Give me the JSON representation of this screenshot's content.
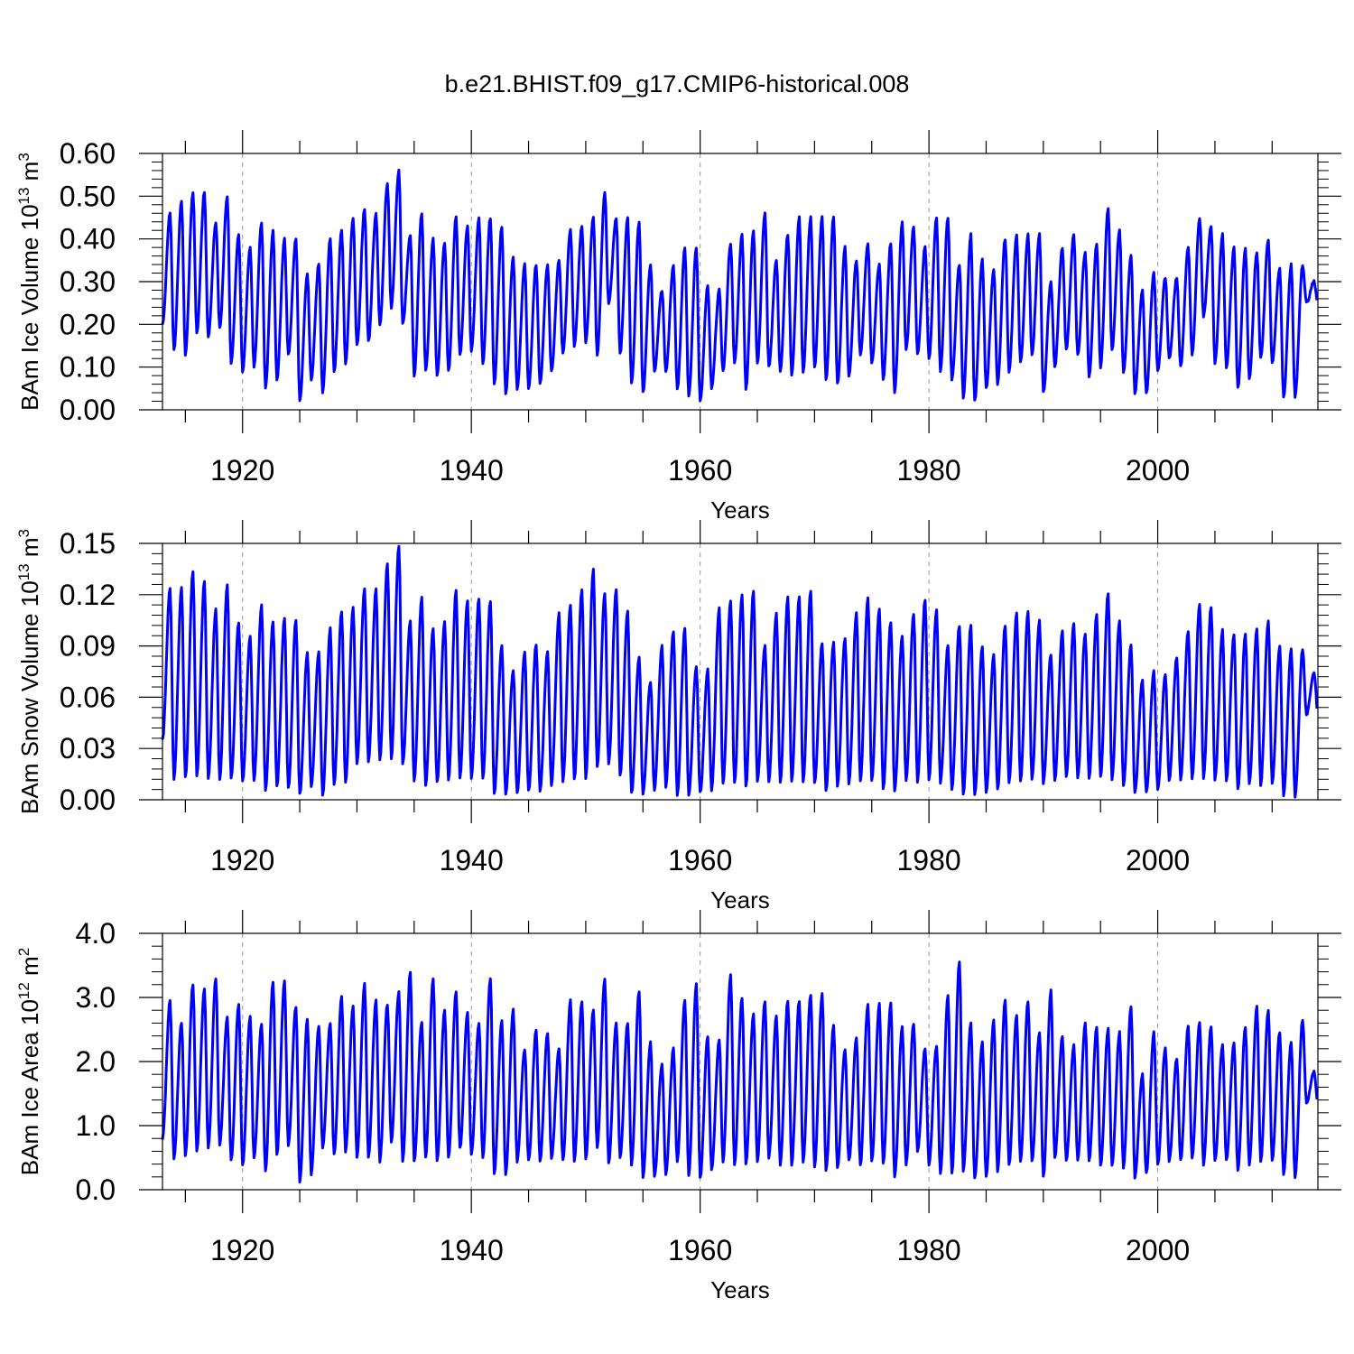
{
  "figure": {
    "title": "b.e21.BHIST.f09_g17.CMIP6-historical.008"
  },
  "chart_data": [
    {
      "type": "line",
      "ylabel": "BAm Ice Volume",
      "ylabel_power": "10",
      "ylabel_exp": "13",
      "ylabel_unit": "m",
      "ylabel_unit_exp": "3",
      "xlabel": "Years",
      "xlim": [
        1913,
        2014
      ],
      "ylim": [
        0.0,
        0.6
      ],
      "yticks": [
        "0.00",
        "0.10",
        "0.20",
        "0.30",
        "0.40",
        "0.50",
        "0.60"
      ],
      "ytick_values": [
        0.0,
        0.1,
        0.2,
        0.3,
        0.4,
        0.5,
        0.6
      ],
      "xticks": [
        "1920",
        "1940",
        "1960",
        "1980",
        "2000"
      ],
      "xtick_values": [
        1920,
        1940,
        1960,
        1980,
        2000
      ],
      "grid": "vertical dashed at labeled years",
      "series": [
        {
          "name": "BAm Ice Volume",
          "color": "#0000ff",
          "start_year": 1913,
          "max": [
            0.46,
            0.49,
            0.51,
            0.51,
            0.44,
            0.5,
            0.41,
            0.38,
            0.44,
            0.42,
            0.4,
            0.4,
            0.32,
            0.34,
            0.4,
            0.42,
            0.45,
            0.47,
            0.46,
            0.53,
            0.56,
            0.41,
            0.46,
            0.4,
            0.39,
            0.45,
            0.43,
            0.45,
            0.45,
            0.43,
            0.36,
            0.34,
            0.34,
            0.34,
            0.35,
            0.42,
            0.43,
            0.45,
            0.51,
            0.45,
            0.45,
            0.44,
            0.34,
            0.28,
            0.34,
            0.38,
            0.38,
            0.29,
            0.28,
            0.39,
            0.41,
            0.42,
            0.46,
            0.35,
            0.41,
            0.45,
            0.45,
            0.45,
            0.45,
            0.38,
            0.35,
            0.39,
            0.34,
            0.39,
            0.44,
            0.43,
            0.38,
            0.45,
            0.45,
            0.34,
            0.41,
            0.35,
            0.33,
            0.4,
            0.41,
            0.41,
            0.41,
            0.3,
            0.38,
            0.41,
            0.37,
            0.39,
            0.47,
            0.42,
            0.36,
            0.28,
            0.32,
            0.31,
            0.31,
            0.38,
            0.45,
            0.43,
            0.41,
            0.38,
            0.38,
            0.37,
            0.4,
            0.33,
            0.34,
            0.34,
            0.3
          ],
          "min": [
            0.2,
            0.14,
            0.13,
            0.18,
            0.17,
            0.19,
            0.11,
            0.09,
            0.1,
            0.05,
            0.07,
            0.13,
            0.02,
            0.07,
            0.04,
            0.09,
            0.11,
            0.15,
            0.16,
            0.2,
            0.24,
            0.2,
            0.08,
            0.09,
            0.08,
            0.09,
            0.13,
            0.14,
            0.11,
            0.06,
            0.04,
            0.05,
            0.05,
            0.06,
            0.09,
            0.13,
            0.15,
            0.16,
            0.13,
            0.25,
            0.13,
            0.06,
            0.04,
            0.09,
            0.09,
            0.05,
            0.03,
            0.02,
            0.05,
            0.09,
            0.11,
            0.05,
            0.11,
            0.1,
            0.09,
            0.08,
            0.09,
            0.1,
            0.07,
            0.06,
            0.08,
            0.13,
            0.11,
            0.07,
            0.04,
            0.14,
            0.13,
            0.12,
            0.09,
            0.07,
            0.03,
            0.02,
            0.05,
            0.06,
            0.09,
            0.11,
            0.13,
            0.04,
            0.1,
            0.14,
            0.13,
            0.08,
            0.1,
            0.14,
            0.09,
            0.04,
            0.04,
            0.09,
            0.12,
            0.1,
            0.13,
            0.22,
            0.11,
            0.1,
            0.05,
            0.07,
            0.12,
            0.11,
            0.03,
            0.03,
            0.25
          ]
        }
      ]
    },
    {
      "type": "line",
      "ylabel": "BAm Snow Volume",
      "ylabel_power": "10",
      "ylabel_exp": "13",
      "ylabel_unit": "m",
      "ylabel_unit_exp": "3",
      "xlabel": "Years",
      "xlim": [
        1913,
        2014
      ],
      "ylim": [
        0.0,
        0.15
      ],
      "yticks": [
        "0.00",
        "0.03",
        "0.06",
        "0.09",
        "0.12",
        "0.15"
      ],
      "ytick_values": [
        0.0,
        0.03,
        0.06,
        0.09,
        0.12,
        0.15
      ],
      "xticks": [
        "1920",
        "1940",
        "1960",
        "1980",
        "2000"
      ],
      "xtick_values": [
        1920,
        1940,
        1960,
        1980,
        2000
      ],
      "grid": "vertical dashed at labeled years",
      "series": [
        {
          "name": "BAm Snow Volume",
          "color": "#0000ff",
          "start_year": 1913,
          "max": [
            0.124,
            0.124,
            0.133,
            0.128,
            0.111,
            0.126,
            0.104,
            0.095,
            0.114,
            0.104,
            0.106,
            0.105,
            0.086,
            0.086,
            0.1,
            0.11,
            0.112,
            0.124,
            0.123,
            0.138,
            0.149,
            0.104,
            0.118,
            0.1,
            0.104,
            0.122,
            0.116,
            0.118,
            0.116,
            0.09,
            0.076,
            0.086,
            0.091,
            0.086,
            0.109,
            0.114,
            0.123,
            0.135,
            0.121,
            0.123,
            0.11,
            0.083,
            0.069,
            0.09,
            0.099,
            0.1,
            0.078,
            0.076,
            0.112,
            0.116,
            0.12,
            0.122,
            0.09,
            0.109,
            0.118,
            0.119,
            0.122,
            0.092,
            0.092,
            0.095,
            0.109,
            0.118,
            0.112,
            0.104,
            0.096,
            0.109,
            0.117,
            0.111,
            0.09,
            0.102,
            0.102,
            0.089,
            0.085,
            0.102,
            0.109,
            0.11,
            0.105,
            0.085,
            0.099,
            0.103,
            0.097,
            0.108,
            0.121,
            0.105,
            0.09,
            0.07,
            0.075,
            0.073,
            0.083,
            0.099,
            0.115,
            0.113,
            0.099,
            0.097,
            0.097,
            0.1,
            0.104,
            0.09,
            0.088,
            0.088,
            0.075
          ],
          "min": [
            0.035,
            0.012,
            0.013,
            0.014,
            0.013,
            0.012,
            0.012,
            0.011,
            0.011,
            0.006,
            0.008,
            0.007,
            0.003,
            0.008,
            0.003,
            0.009,
            0.01,
            0.021,
            0.022,
            0.023,
            0.024,
            0.021,
            0.011,
            0.009,
            0.01,
            0.011,
            0.013,
            0.013,
            0.012,
            0.004,
            0.004,
            0.004,
            0.005,
            0.005,
            0.009,
            0.011,
            0.012,
            0.013,
            0.02,
            0.021,
            0.014,
            0.004,
            0.004,
            0.006,
            0.008,
            0.003,
            0.003,
            0.004,
            0.006,
            0.009,
            0.01,
            0.008,
            0.011,
            0.01,
            0.01,
            0.011,
            0.01,
            0.01,
            0.006,
            0.008,
            0.01,
            0.011,
            0.011,
            0.007,
            0.005,
            0.011,
            0.011,
            0.012,
            0.01,
            0.006,
            0.003,
            0.003,
            0.004,
            0.006,
            0.01,
            0.011,
            0.012,
            0.01,
            0.012,
            0.013,
            0.013,
            0.013,
            0.013,
            0.012,
            0.009,
            0.004,
            0.004,
            0.006,
            0.012,
            0.012,
            0.012,
            0.013,
            0.012,
            0.011,
            0.006,
            0.009,
            0.009,
            0.01,
            0.003,
            0.002,
            0.05
          ]
        }
      ]
    },
    {
      "type": "line",
      "ylabel": "BAm Ice Area",
      "ylabel_power": "10",
      "ylabel_exp": "12",
      "ylabel_unit": "m",
      "ylabel_unit_exp": "2",
      "xlabel": "Years",
      "xlim": [
        1913,
        2014
      ],
      "ylim": [
        0.0,
        4.0
      ],
      "yticks": [
        "0.0",
        "1.0",
        "2.0",
        "3.0",
        "4.0"
      ],
      "ytick_values": [
        0.0,
        1.0,
        2.0,
        3.0,
        4.0
      ],
      "xticks": [
        "1920",
        "1940",
        "1960",
        "1980",
        "2000"
      ],
      "xtick_values": [
        1920,
        1940,
        1960,
        1980,
        2000
      ],
      "grid": "vertical dashed at labeled years",
      "series": [
        {
          "name": "BAm Ice Area",
          "color": "#0000ff",
          "start_year": 1913,
          "max": [
            2.95,
            2.6,
            3.2,
            3.15,
            3.3,
            2.7,
            2.9,
            2.7,
            2.6,
            3.25,
            3.25,
            2.85,
            2.65,
            2.55,
            2.6,
            3.0,
            2.85,
            3.2,
            2.95,
            2.9,
            3.1,
            3.4,
            2.6,
            3.3,
            2.8,
            3.1,
            2.75,
            2.6,
            3.3,
            2.65,
            2.8,
            2.2,
            2.5,
            2.45,
            2.2,
            2.95,
            2.95,
            2.8,
            3.3,
            2.6,
            2.6,
            3.1,
            2.3,
            1.95,
            2.2,
            2.95,
            3.2,
            2.4,
            2.35,
            3.35,
            3.0,
            2.75,
            2.95,
            2.7,
            2.95,
            2.95,
            3.05,
            3.05,
            2.55,
            2.2,
            2.35,
            2.9,
            2.9,
            2.9,
            2.55,
            2.6,
            2.2,
            2.25,
            3.05,
            3.55,
            2.6,
            2.3,
            2.65,
            2.95,
            2.7,
            2.95,
            2.45,
            3.1,
            2.4,
            2.25,
            2.6,
            2.55,
            2.5,
            2.45,
            2.85,
            1.8,
            2.45,
            2.2,
            2.05,
            2.55,
            2.6,
            2.55,
            2.25,
            2.3,
            2.55,
            2.85,
            2.8,
            2.45,
            2.3,
            2.65,
            1.85
          ],
          "min": [
            0.8,
            0.5,
            0.55,
            0.6,
            0.65,
            0.7,
            0.45,
            0.38,
            0.5,
            0.28,
            0.55,
            0.7,
            0.12,
            0.25,
            0.65,
            0.55,
            0.6,
            0.5,
            0.5,
            0.45,
            0.75,
            0.45,
            0.45,
            0.5,
            0.45,
            0.5,
            0.65,
            0.55,
            0.5,
            0.25,
            0.25,
            0.45,
            0.45,
            0.45,
            0.5,
            0.45,
            0.45,
            0.5,
            0.65,
            0.4,
            0.5,
            0.4,
            0.2,
            0.2,
            0.25,
            0.45,
            0.22,
            0.18,
            0.3,
            0.45,
            0.4,
            0.42,
            0.45,
            0.5,
            0.4,
            0.4,
            0.45,
            0.35,
            0.3,
            0.35,
            0.45,
            0.38,
            0.45,
            0.4,
            0.2,
            0.4,
            0.6,
            0.4,
            0.25,
            0.25,
            0.3,
            0.18,
            0.2,
            0.3,
            0.4,
            0.45,
            0.45,
            0.2,
            0.5,
            0.45,
            0.45,
            0.45,
            0.38,
            0.38,
            0.35,
            0.2,
            0.25,
            0.4,
            0.45,
            0.45,
            0.5,
            0.4,
            0.45,
            0.45,
            0.3,
            0.4,
            0.45,
            0.45,
            0.25,
            0.2,
            1.35
          ]
        }
      ]
    }
  ]
}
